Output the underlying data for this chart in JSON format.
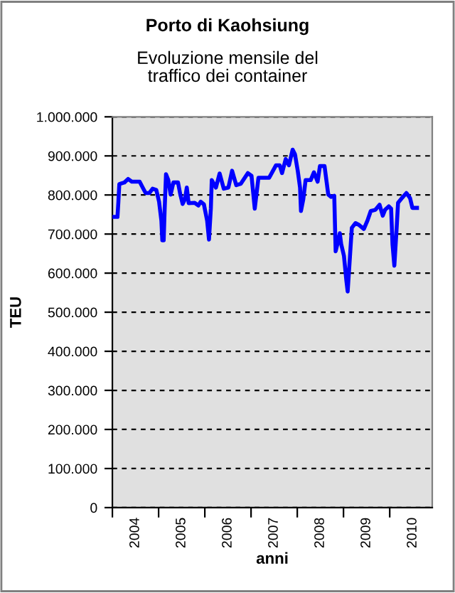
{
  "chart_data": {
    "type": "line",
    "title": "Porto di Kaohsiung",
    "subtitle": "Evoluzione mensile del\ntraffico dei container",
    "xlabel": "anni",
    "ylabel": "TEU",
    "x": [
      2004.01,
      2004.11,
      2004.13,
      2004.15,
      2004.26,
      2004.34,
      2004.42,
      2004.59,
      2004.67,
      2004.72,
      2004.8,
      2004.87,
      2004.95,
      2005.01,
      2005.06,
      2005.08,
      2005.11,
      2005.13,
      2005.16,
      2005.21,
      2005.26,
      2005.32,
      2005.42,
      2005.47,
      2005.52,
      2005.57,
      2005.61,
      2005.65,
      2005.78,
      2005.86,
      2005.91,
      2005.98,
      2006.05,
      2006.09,
      2006.13,
      2006.15,
      2006.24,
      2006.32,
      2006.41,
      2006.51,
      2006.59,
      2006.68,
      2006.78,
      2006.93,
      2007.01,
      2007.08,
      2007.11,
      2007.16,
      2007.39,
      2007.46,
      2007.54,
      2007.62,
      2007.67,
      2007.75,
      2007.82,
      2007.9,
      2007.95,
      2008.01,
      2008.06,
      2008.08,
      2008.13,
      2008.18,
      2008.29,
      2008.36,
      2008.44,
      2008.49,
      2008.59,
      2008.67,
      2008.73,
      2008.8,
      2008.83,
      2008.88,
      2008.92,
      2008.95,
      2009.01,
      2009.06,
      2009.09,
      2009.12,
      2009.18,
      2009.26,
      2009.34,
      2009.44,
      2009.52,
      2009.59,
      2009.69,
      2009.78,
      2009.85,
      2009.9,
      2009.98,
      2010.03,
      2010.06,
      2010.1,
      2010.15,
      2010.18,
      2010.27,
      2010.36,
      2010.44,
      2010.49,
      2010.59
    ],
    "series": [
      {
        "color": "#0000ff",
        "values": [
          744000,
          744000,
          783000,
          828000,
          832000,
          841000,
          834000,
          834000,
          816000,
          805000,
          805000,
          816000,
          813000,
          783000,
          734000,
          684000,
          684000,
          760000,
          853000,
          838000,
          801000,
          832000,
          832000,
          801000,
          777000,
          789000,
          819000,
          779000,
          780000,
          773000,
          783000,
          776000,
          734000,
          686000,
          765000,
          838000,
          819000,
          855000,
          816000,
          819000,
          862000,
          825000,
          829000,
          856000,
          849000,
          765000,
          795000,
          844000,
          844000,
          859000,
          876000,
          876000,
          856000,
          892000,
          876000,
          916000,
          904000,
          862000,
          819000,
          759000,
          789000,
          838000,
          838000,
          858000,
          834000,
          874000,
          874000,
          801000,
          795000,
          798000,
          656000,
          680000,
          702000,
          674000,
          644000,
          583000,
          553000,
          607000,
          716000,
          728000,
          723000,
          713000,
          735000,
          759000,
          762000,
          775000,
          747000,
          762000,
          771000,
          765000,
          674000,
          619000,
          716000,
          780000,
          793000,
          805000,
          792000,
          767000,
          767000
        ]
      }
    ],
    "xlim": [
      2004,
      2010.92
    ],
    "xticks": [
      {
        "value": 2004,
        "label": null
      },
      {
        "value": 2005,
        "label": null
      },
      {
        "value": 2006,
        "label": null
      },
      {
        "value": 2007,
        "label": null
      },
      {
        "value": 2008,
        "label": null
      },
      {
        "value": 2009,
        "label": null
      },
      {
        "value": 2010,
        "label": null
      },
      {
        "value": 2004.5,
        "label": "2004"
      },
      {
        "value": 2005.5,
        "label": "2005"
      },
      {
        "value": 2006.5,
        "label": "2006"
      },
      {
        "value": 2007.5,
        "label": "2007"
      },
      {
        "value": 2008.5,
        "label": "2008"
      },
      {
        "value": 2009.5,
        "label": "2009"
      },
      {
        "value": 2010.5,
        "label": "2010"
      }
    ],
    "ylim": [
      0,
      1000000
    ],
    "yticks": [
      {
        "value": 0,
        "label": "0"
      },
      {
        "value": 100000,
        "label": "100.000"
      },
      {
        "value": 200000,
        "label": "200.000"
      },
      {
        "value": 300000,
        "label": "300.000"
      },
      {
        "value": 400000,
        "label": "400.000"
      },
      {
        "value": 500000,
        "label": "500.000"
      },
      {
        "value": 600000,
        "label": "600.000"
      },
      {
        "value": 700000,
        "label": "700.000"
      },
      {
        "value": 800000,
        "label": "800.000"
      },
      {
        "value": 900000,
        "label": "900.000"
      },
      {
        "value": 1000000,
        "label": "1.000.000"
      }
    ],
    "grid": "y",
    "line_style": "solid",
    "marker": "none"
  }
}
